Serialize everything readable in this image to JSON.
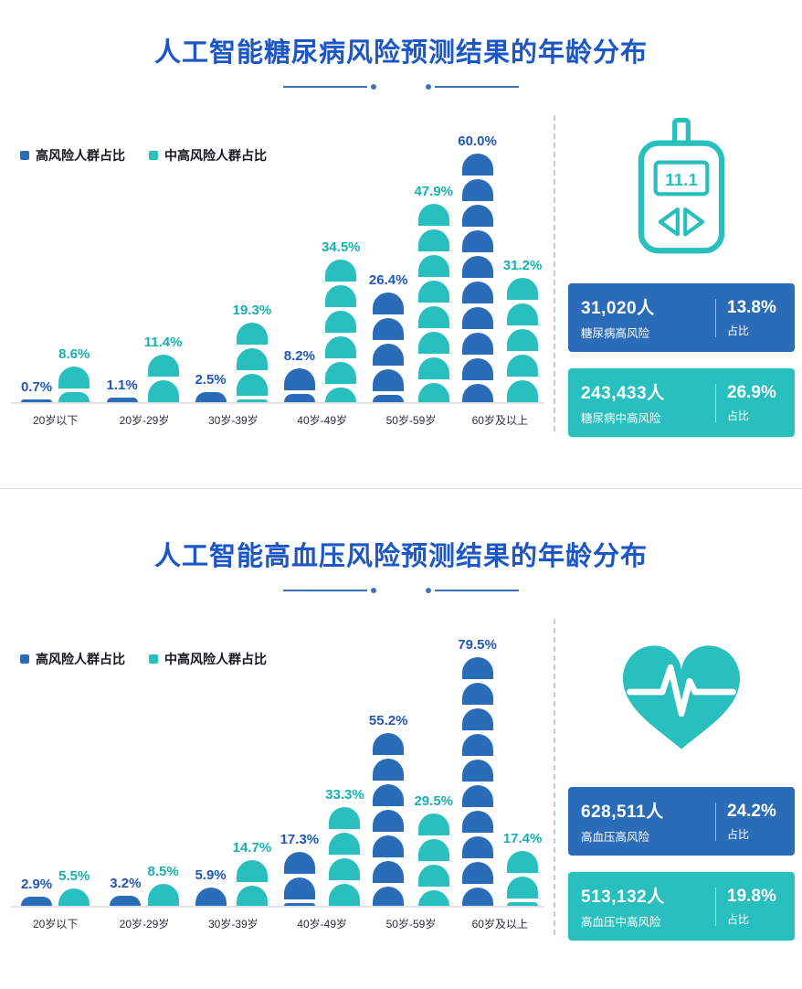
{
  "colors": {
    "blue": "#2b6cb9",
    "teal": "#2abfbf",
    "title_blue": "#1c57c3"
  },
  "chart_data": [
    {
      "type": "bar",
      "title": "人工智能糖尿病风险预测结果的年龄分布",
      "categories": [
        "20岁以下",
        "20岁-29岁",
        "30岁-39岁",
        "40岁-49岁",
        "50岁-59岁",
        "60岁及以上"
      ],
      "series": [
        {
          "name": "高风险人群占比",
          "color": "#2b6cb9",
          "label_color": "#2057b8",
          "values": [
            0.7,
            1.1,
            2.5,
            8.2,
            26.4,
            60.0
          ]
        },
        {
          "name": "中高风险人群占比",
          "color": "#2abfbf",
          "label_color": "#17b0b2",
          "values": [
            8.6,
            11.4,
            19.3,
            34.5,
            47.9,
            31.2
          ]
        }
      ],
      "value_suffix": "%",
      "ylim": [
        0,
        60
      ],
      "grid": false,
      "legend_position": "top-left"
    },
    {
      "type": "bar",
      "title": "人工智能高血压风险预测结果的年龄分布",
      "categories": [
        "20岁以下",
        "20岁-29岁",
        "30岁-39岁",
        "40岁-49岁",
        "50岁-59岁",
        "60岁及以上"
      ],
      "series": [
        {
          "name": "高风险人群占比",
          "color": "#2b6cb9",
          "label_color": "#2057b8",
          "values": [
            2.9,
            3.2,
            5.9,
            17.3,
            55.2,
            79.5
          ]
        },
        {
          "name": "中高风险人群占比",
          "color": "#2abfbf",
          "label_color": "#17b0b2",
          "values": [
            5.5,
            8.5,
            14.7,
            33.3,
            29.5,
            17.4
          ]
        }
      ],
      "value_suffix": "%",
      "ylim": [
        0,
        79.5
      ],
      "grid": false,
      "legend_position": "top-left"
    }
  ],
  "sections": [
    {
      "title": "人工智能糖尿病风险预测结果的年龄分布",
      "legend": [
        {
          "label": "高风险人群占比"
        },
        {
          "label": "中高风险人群占比"
        }
      ],
      "icon": "glucose-meter-icon",
      "meter_reading": "11.1",
      "stats": [
        {
          "count": "31,020人",
          "desc": "糖尿病高风险",
          "pct": "13.8%",
          "pct_label": "占比"
        },
        {
          "count": "243,433人",
          "desc": "糖尿病中高风险",
          "pct": "26.9%",
          "pct_label": "占比"
        }
      ]
    },
    {
      "title": "人工智能高血压风险预测结果的年龄分布",
      "legend": [
        {
          "label": "高风险人群占比"
        },
        {
          "label": "中高风险人群占比"
        }
      ],
      "icon": "heart-ecg-icon",
      "stats": [
        {
          "count": "628,511人",
          "desc": "高血压高风险",
          "pct": "24.2%",
          "pct_label": "占比"
        },
        {
          "count": "513,132人",
          "desc": "高血压中高风险",
          "pct": "19.8%",
          "pct_label": "占比"
        }
      ]
    }
  ]
}
